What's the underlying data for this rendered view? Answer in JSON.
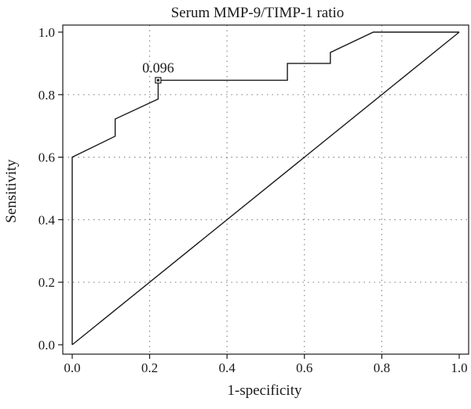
{
  "chart_data": {
    "type": "line",
    "title": "Serum MMP-9/TIMP-1 ratio",
    "xlabel": "1-specificity",
    "ylabel": "Sensitivity",
    "xlim": [
      0,
      1
    ],
    "ylim": [
      0,
      1
    ],
    "xticks": [
      "0.0",
      "0.2",
      "0.4",
      "0.6",
      "0.8",
      "1.0"
    ],
    "yticks": [
      "0.0",
      "0.2",
      "0.4",
      "0.6",
      "0.8",
      "1.0"
    ],
    "grid": true,
    "series": [
      {
        "kind": "roc-curve",
        "color": "#1a1a1a",
        "points": [
          [
            0.0,
            0.0
          ],
          [
            0.0,
            0.6
          ],
          [
            0.111,
            0.667
          ],
          [
            0.111,
            0.722
          ],
          [
            0.222,
            0.786
          ],
          [
            0.222,
            0.846
          ],
          [
            0.556,
            0.846
          ],
          [
            0.556,
            0.9
          ],
          [
            0.667,
            0.9
          ],
          [
            0.667,
            0.935
          ],
          [
            0.778,
            1.0
          ],
          [
            1.0,
            1.0
          ]
        ]
      },
      {
        "kind": "reference-diagonal",
        "color": "#1a1a1a",
        "points": [
          [
            0.0,
            0.0
          ],
          [
            1.0,
            1.0
          ]
        ]
      }
    ],
    "annotation": {
      "label": "0.096",
      "point": [
        0.222,
        0.846
      ]
    }
  }
}
